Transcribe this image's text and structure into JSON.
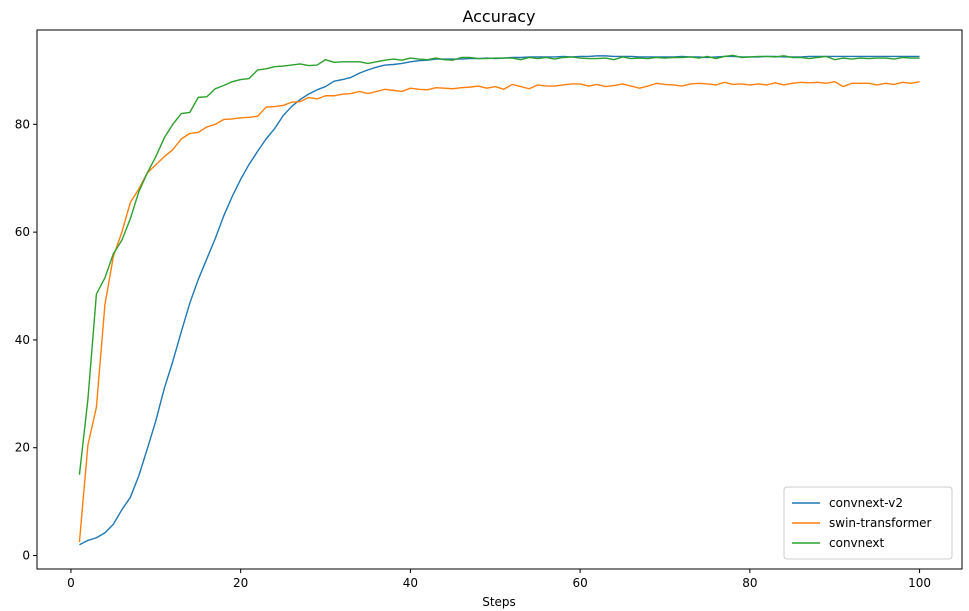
{
  "chart_data": {
    "type": "line",
    "title": "Accuracy",
    "xlabel": "Steps",
    "ylabel": "",
    "xlim": [
      -4,
      105
    ],
    "ylim": [
      -2.5,
      97.5
    ],
    "xticks": [
      0,
      20,
      40,
      60,
      80,
      100
    ],
    "yticks": [
      0,
      20,
      40,
      60,
      80
    ],
    "grid": false,
    "legend_position": "lower-right",
    "x_start": 1,
    "x_step": 1,
    "series": [
      {
        "name": "convnext-v2",
        "color": "#1f77b4",
        "values": [
          2.0,
          2.8,
          3.3,
          4.2,
          5.8,
          8.5,
          10.8,
          14.8,
          19.8,
          25.0,
          31.0,
          36.0,
          41.5,
          46.8,
          51.2,
          55.0,
          58.8,
          63.0,
          66.6,
          69.8,
          72.6,
          75.0,
          77.3,
          79.2,
          81.6,
          83.3,
          84.6,
          85.6,
          86.4,
          87.0,
          88.0,
          88.3,
          88.7,
          89.5,
          90.1,
          90.6,
          91.0,
          91.1,
          91.3,
          91.6,
          91.8,
          91.9,
          92.1,
          92.1,
          92.1,
          92.1,
          92.2,
          92.2,
          92.3,
          92.2,
          92.3,
          92.4,
          92.4,
          92.5,
          92.5,
          92.5,
          92.5,
          92.6,
          92.5,
          92.6,
          92.6,
          92.7,
          92.7,
          92.6,
          92.6,
          92.6,
          92.5,
          92.5,
          92.5,
          92.5,
          92.5,
          92.6,
          92.5,
          92.5,
          92.4,
          92.5,
          92.6,
          92.6,
          92.5,
          92.5,
          92.5,
          92.6,
          92.6,
          92.5,
          92.5,
          92.5,
          92.6,
          92.6,
          92.6,
          92.6,
          92.6,
          92.6,
          92.6,
          92.6,
          92.6,
          92.6,
          92.6,
          92.6,
          92.6,
          92.6
        ]
      },
      {
        "name": "swin-transformer",
        "color": "#ff7f0e",
        "values": [
          2.5,
          20.5,
          27.5,
          46.5,
          55.5,
          60.0,
          65.5,
          68.0,
          71.0,
          72.5,
          74.0,
          75.3,
          77.3,
          78.3,
          78.5,
          79.5,
          80.0,
          80.9,
          81.0,
          81.2,
          81.3,
          81.5,
          83.2,
          83.3,
          83.5,
          84.1,
          84.2,
          85.0,
          84.7,
          85.3,
          85.3,
          85.6,
          85.7,
          86.1,
          85.7,
          86.1,
          86.5,
          86.3,
          86.1,
          86.7,
          86.5,
          86.4,
          86.8,
          86.7,
          86.6,
          86.8,
          86.9,
          87.1,
          86.7,
          87.0,
          86.5,
          87.4,
          87.0,
          86.6,
          87.3,
          87.1,
          87.1,
          87.3,
          87.5,
          87.5,
          87.1,
          87.4,
          87.0,
          87.2,
          87.5,
          87.1,
          86.7,
          87.1,
          87.6,
          87.4,
          87.3,
          87.1,
          87.5,
          87.6,
          87.5,
          87.3,
          87.8,
          87.4,
          87.5,
          87.3,
          87.5,
          87.3,
          87.7,
          87.3,
          87.6,
          87.8,
          87.7,
          87.8,
          87.6,
          87.9,
          87.0,
          87.6,
          87.6,
          87.6,
          87.3,
          87.6,
          87.4,
          87.8,
          87.6,
          87.9
        ]
      },
      {
        "name": "convnext",
        "color": "#2ca02c",
        "values": [
          15.0,
          29.0,
          48.5,
          51.5,
          56.0,
          58.5,
          62.5,
          67.5,
          71.0,
          74.0,
          77.5,
          80.0,
          82.0,
          82.2,
          85.0,
          85.1,
          86.6,
          87.2,
          87.9,
          88.3,
          88.5,
          90.1,
          90.3,
          90.7,
          90.8,
          91.0,
          91.2,
          90.9,
          91.0,
          92.0,
          91.5,
          91.6,
          91.6,
          91.6,
          91.3,
          91.6,
          91.9,
          92.1,
          91.9,
          92.3,
          92.1,
          92.0,
          92.3,
          92.0,
          91.9,
          92.4,
          92.4,
          92.2,
          92.2,
          92.3,
          92.3,
          92.3,
          92.0,
          92.4,
          92.2,
          92.4,
          92.1,
          92.4,
          92.5,
          92.3,
          92.2,
          92.2,
          92.3,
          92.0,
          92.5,
          92.2,
          92.3,
          92.2,
          92.4,
          92.3,
          92.4,
          92.4,
          92.5,
          92.3,
          92.6,
          92.2,
          92.6,
          92.8,
          92.4,
          92.5,
          92.6,
          92.6,
          92.5,
          92.7,
          92.4,
          92.4,
          92.2,
          92.4,
          92.6,
          92.0,
          92.3,
          92.1,
          92.3,
          92.2,
          92.3,
          92.3,
          92.1,
          92.4,
          92.3,
          92.3
        ]
      }
    ]
  }
}
